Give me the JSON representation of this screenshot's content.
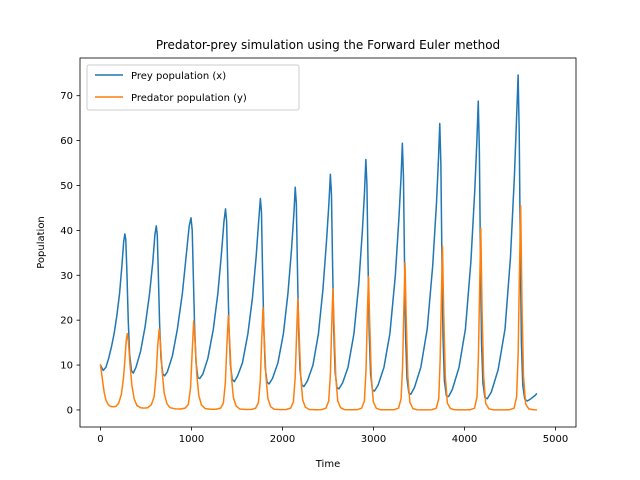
{
  "chart_data": {
    "type": "line",
    "title": "Predator-prey simulation using the Forward Euler method",
    "xlabel": "Time",
    "ylabel": "Population",
    "xlim": [
      -225,
      5225
    ],
    "ylim": [
      -3.8,
      78.4
    ],
    "xticks": [
      0,
      1000,
      2000,
      3000,
      4000,
      5000
    ],
    "yticks": [
      0,
      10,
      20,
      30,
      40,
      50,
      60,
      70
    ],
    "grid": false,
    "legend_position": "top-left",
    "series": [
      {
        "name": "Prey population (x)",
        "color": "#1f77b4",
        "points": [
          [
            0,
            10
          ],
          [
            30,
            8.8
          ],
          [
            60,
            9.5
          ],
          [
            90,
            11.5
          ],
          [
            120,
            14
          ],
          [
            150,
            17
          ],
          [
            180,
            21
          ],
          [
            210,
            26
          ],
          [
            235,
            32
          ],
          [
            255,
            37.5
          ],
          [
            268,
            39.2
          ],
          [
            278,
            38
          ],
          [
            290,
            31
          ],
          [
            305,
            20
          ],
          [
            320,
            12.5
          ],
          [
            340,
            8.8
          ],
          [
            360,
            8.2
          ],
          [
            390,
            9.5
          ],
          [
            440,
            13
          ],
          [
            490,
            18.5
          ],
          [
            540,
            26
          ],
          [
            575,
            33
          ],
          [
            598,
            39
          ],
          [
            613,
            41
          ],
          [
            624,
            39
          ],
          [
            636,
            30
          ],
          [
            650,
            19
          ],
          [
            665,
            11.5
          ],
          [
            685,
            8
          ],
          [
            705,
            7.6
          ],
          [
            735,
            8.5
          ],
          [
            790,
            12
          ],
          [
            845,
            18
          ],
          [
            900,
            26
          ],
          [
            945,
            35
          ],
          [
            975,
            41
          ],
          [
            995,
            42.8
          ],
          [
            1008,
            40
          ],
          [
            1020,
            30
          ],
          [
            1035,
            18
          ],
          [
            1050,
            10.5
          ],
          [
            1070,
            7.2
          ],
          [
            1090,
            7
          ],
          [
            1125,
            8
          ],
          [
            1180,
            11.5
          ],
          [
            1240,
            18
          ],
          [
            1290,
            26
          ],
          [
            1330,
            35
          ],
          [
            1357,
            42
          ],
          [
            1374,
            44.8
          ],
          [
            1386,
            42
          ],
          [
            1398,
            31
          ],
          [
            1412,
            18
          ],
          [
            1428,
            10
          ],
          [
            1448,
            6.8
          ],
          [
            1470,
            6.3
          ],
          [
            1505,
            7.5
          ],
          [
            1560,
            10.5
          ],
          [
            1620,
            17
          ],
          [
            1670,
            25
          ],
          [
            1710,
            34
          ],
          [
            1738,
            42
          ],
          [
            1757,
            47.1
          ],
          [
            1769,
            44
          ],
          [
            1780,
            32
          ],
          [
            1795,
            18
          ],
          [
            1810,
            9.5
          ],
          [
            1830,
            6.2
          ],
          [
            1852,
            5.8
          ],
          [
            1890,
            7
          ],
          [
            1950,
            10.5
          ],
          [
            2010,
            17
          ],
          [
            2060,
            26
          ],
          [
            2100,
            36
          ],
          [
            2126,
            44
          ],
          [
            2140,
            49.6
          ],
          [
            2152,
            46
          ],
          [
            2163,
            33
          ],
          [
            2177,
            18
          ],
          [
            2192,
            9
          ],
          [
            2212,
            5.6
          ],
          [
            2235,
            5.2
          ],
          [
            2275,
            6.5
          ],
          [
            2335,
            10
          ],
          [
            2395,
            17
          ],
          [
            2445,
            27
          ],
          [
            2485,
            38
          ],
          [
            2510,
            46
          ],
          [
            2526,
            52.5
          ],
          [
            2538,
            48
          ],
          [
            2549,
            34
          ],
          [
            2563,
            18
          ],
          [
            2578,
            8.5
          ],
          [
            2598,
            5
          ],
          [
            2620,
            4.7
          ],
          [
            2660,
            6
          ],
          [
            2720,
            9.5
          ],
          [
            2785,
            17
          ],
          [
            2838,
            28
          ],
          [
            2878,
            40
          ],
          [
            2900,
            48
          ],
          [
            2916,
            55.8
          ],
          [
            2928,
            50
          ],
          [
            2939,
            34
          ],
          [
            2953,
            17
          ],
          [
            2968,
            8
          ],
          [
            2988,
            4.5
          ],
          [
            3010,
            4.2
          ],
          [
            3050,
            5.5
          ],
          [
            3115,
            9.5
          ],
          [
            3180,
            17
          ],
          [
            3240,
            30
          ],
          [
            3280,
            43
          ],
          [
            3303,
            52
          ],
          [
            3317,
            59.4
          ],
          [
            3329,
            52
          ],
          [
            3340,
            34
          ],
          [
            3353,
            16
          ],
          [
            3368,
            7
          ],
          [
            3388,
            3.8
          ],
          [
            3410,
            3.5
          ],
          [
            3450,
            5
          ],
          [
            3520,
            9.5
          ],
          [
            3590,
            18
          ],
          [
            3650,
            32
          ],
          [
            3692,
            46
          ],
          [
            3714,
            56
          ],
          [
            3728,
            63.8
          ],
          [
            3740,
            55
          ],
          [
            3751,
            35
          ],
          [
            3764,
            16
          ],
          [
            3779,
            6.5
          ],
          [
            3800,
            3.2
          ],
          [
            3825,
            3
          ],
          [
            3865,
            4.5
          ],
          [
            3940,
            9.5
          ],
          [
            4010,
            18
          ],
          [
            4070,
            33
          ],
          [
            4113,
            49
          ],
          [
            4136,
            60
          ],
          [
            4151,
            68.8
          ],
          [
            4163,
            58
          ],
          [
            4174,
            36
          ],
          [
            4187,
            15
          ],
          [
            4202,
            6
          ],
          [
            4224,
            2.8
          ],
          [
            4250,
            2.5
          ],
          [
            4295,
            4
          ],
          [
            4370,
            9
          ],
          [
            4445,
            18
          ],
          [
            4505,
            34
          ],
          [
            4548,
            52
          ],
          [
            4572,
            65
          ],
          [
            4589,
            74.6
          ],
          [
            4601,
            62
          ],
          [
            4612,
            38
          ],
          [
            4625,
            15
          ],
          [
            4640,
            5.5
          ],
          [
            4662,
            2.4
          ],
          [
            4690,
            2
          ],
          [
            4730,
            2.5
          ],
          [
            4780,
            3.3
          ],
          [
            4790,
            3.6
          ]
        ]
      },
      {
        "name": "Predator population (y)",
        "color": "#ff7f0e",
        "points": [
          [
            0,
            10
          ],
          [
            20,
            7
          ],
          [
            40,
            4
          ],
          [
            60,
            2.2
          ],
          [
            85,
            1.2
          ],
          [
            110,
            0.8
          ],
          [
            140,
            0.7
          ],
          [
            170,
            0.8
          ],
          [
            200,
            1.5
          ],
          [
            230,
            3.5
          ],
          [
            252,
            7
          ],
          [
            268,
            11
          ],
          [
            283,
            15.5
          ],
          [
            295,
            17
          ],
          [
            308,
            15
          ],
          [
            325,
            10
          ],
          [
            345,
            5.5
          ],
          [
            370,
            2.5
          ],
          [
            400,
            1
          ],
          [
            440,
            0.5
          ],
          [
            480,
            0.4
          ],
          [
            520,
            0.5
          ],
          [
            560,
            1.2
          ],
          [
            590,
            3
          ],
          [
            612,
            8
          ],
          [
            628,
            14
          ],
          [
            645,
            18
          ],
          [
            660,
            14.5
          ],
          [
            678,
            8.5
          ],
          [
            700,
            3.8
          ],
          [
            730,
            1.4
          ],
          [
            765,
            0.5
          ],
          [
            820,
            0.25
          ],
          [
            880,
            0.2
          ],
          [
            930,
            0.4
          ],
          [
            965,
            1.2
          ],
          [
            990,
            5
          ],
          [
            1008,
            13
          ],
          [
            1024,
            19.8
          ],
          [
            1040,
            15
          ],
          [
            1058,
            8
          ],
          [
            1080,
            3.2
          ],
          [
            1110,
            1.1
          ],
          [
            1150,
            0.3
          ],
          [
            1210,
            0.15
          ],
          [
            1270,
            0.15
          ],
          [
            1320,
            0.4
          ],
          [
            1350,
            1.5
          ],
          [
            1372,
            6
          ],
          [
            1390,
            15
          ],
          [
            1405,
            21
          ],
          [
            1420,
            15
          ],
          [
            1438,
            7.5
          ],
          [
            1460,
            2.8
          ],
          [
            1490,
            0.9
          ],
          [
            1530,
            0.2
          ],
          [
            1600,
            0.1
          ],
          [
            1660,
            0.12
          ],
          [
            1705,
            0.4
          ],
          [
            1735,
            1.6
          ],
          [
            1756,
            6.5
          ],
          [
            1772,
            16
          ],
          [
            1786,
            22.8
          ],
          [
            1800,
            16
          ],
          [
            1818,
            7.5
          ],
          [
            1840,
            2.5
          ],
          [
            1870,
            0.7
          ],
          [
            1910,
            0.15
          ],
          [
            1980,
            0.08
          ],
          [
            2040,
            0.1
          ],
          [
            2090,
            0.4
          ],
          [
            2120,
            1.8
          ],
          [
            2140,
            7.5
          ],
          [
            2155,
            17
          ],
          [
            2169,
            24.7
          ],
          [
            2183,
            17
          ],
          [
            2200,
            7.5
          ],
          [
            2222,
            2.2
          ],
          [
            2252,
            0.6
          ],
          [
            2295,
            0.1
          ],
          [
            2370,
            0.05
          ],
          [
            2430,
            0.08
          ],
          [
            2478,
            0.4
          ],
          [
            2508,
            2
          ],
          [
            2526,
            8
          ],
          [
            2541,
            19
          ],
          [
            2554,
            27
          ],
          [
            2568,
            18
          ],
          [
            2585,
            7.5
          ],
          [
            2607,
            2
          ],
          [
            2638,
            0.5
          ],
          [
            2680,
            0.08
          ],
          [
            2760,
            0.04
          ],
          [
            2820,
            0.06
          ],
          [
            2870,
            0.4
          ],
          [
            2900,
            2
          ],
          [
            2918,
            9
          ],
          [
            2932,
            21
          ],
          [
            2945,
            29.7
          ],
          [
            2959,
            19
          ],
          [
            2976,
            7.5
          ],
          [
            2998,
            1.8
          ],
          [
            3030,
            0.4
          ],
          [
            3075,
            0.05
          ],
          [
            3160,
            0.03
          ],
          [
            3225,
            0.05
          ],
          [
            3275,
            0.4
          ],
          [
            3303,
            2.5
          ],
          [
            3320,
            10
          ],
          [
            3334,
            23
          ],
          [
            3346,
            32.8
          ],
          [
            3360,
            20
          ],
          [
            3377,
            7.5
          ],
          [
            3400,
            1.7
          ],
          [
            3433,
            0.3
          ],
          [
            3480,
            0.04
          ],
          [
            3570,
            0.02
          ],
          [
            3640,
            0.04
          ],
          [
            3690,
            0.4
          ],
          [
            3717,
            2.5
          ],
          [
            3732,
            11
          ],
          [
            3746,
            25
          ],
          [
            3758,
            36.5
          ],
          [
            3772,
            21
          ],
          [
            3789,
            7.5
          ],
          [
            3812,
            1.5
          ],
          [
            3846,
            0.3
          ],
          [
            3895,
            0.03
          ],
          [
            3990,
            0.02
          ],
          [
            4060,
            0.03
          ],
          [
            4110,
            0.4
          ],
          [
            4138,
            3
          ],
          [
            4153,
            12
          ],
          [
            4167,
            28
          ],
          [
            4179,
            40.5
          ],
          [
            4193,
            22
          ],
          [
            4210,
            7.5
          ],
          [
            4233,
            1.4
          ],
          [
            4268,
            0.25
          ],
          [
            4320,
            0.02
          ],
          [
            4420,
            0.01
          ],
          [
            4490,
            0.03
          ],
          [
            4545,
            0.4
          ],
          [
            4573,
            3
          ],
          [
            4590,
            13
          ],
          [
            4604,
            31
          ],
          [
            4617,
            45.5
          ],
          [
            4631,
            24
          ],
          [
            4648,
            7.5
          ],
          [
            4672,
            1.3
          ],
          [
            4708,
            0.2
          ],
          [
            4760,
            0.05
          ],
          [
            4790,
            0.02
          ]
        ]
      }
    ]
  }
}
